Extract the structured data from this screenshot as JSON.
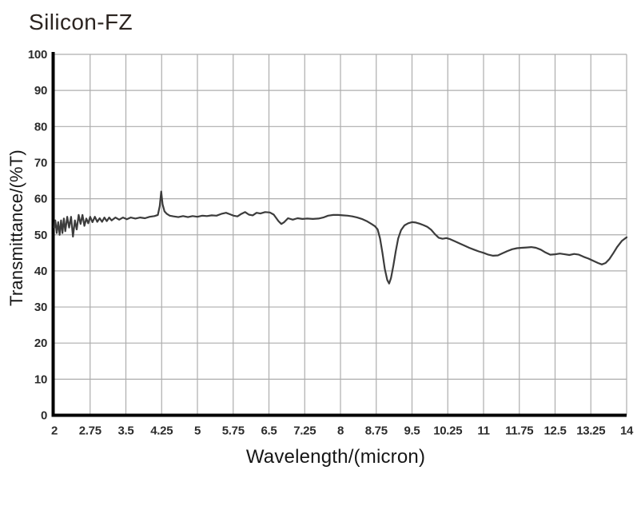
{
  "page": {
    "background": "#ffffff"
  },
  "chart_data": {
    "type": "line",
    "title": "Silicon-FZ",
    "xlabel": "Wavelength/(micron)",
    "ylabel": "Transmittance/(%T)",
    "xlim": [
      2,
      14
    ],
    "ylim": [
      0,
      100
    ],
    "grid": true,
    "legend": false,
    "x_ticks": [
      2,
      2.75,
      3.5,
      4.25,
      5,
      5.75,
      6.5,
      7.25,
      8,
      8.75,
      9.5,
      10.25,
      11,
      11.75,
      12.5,
      13.25,
      14
    ],
    "x_tick_labels": [
      "2",
      "2.75",
      "3.5",
      "4.25",
      "5",
      "5.75",
      "6.5",
      "7.25",
      "8",
      "8.75",
      "9.5",
      "10.25",
      "11",
      "11.75",
      "12.5",
      "13.25",
      "14"
    ],
    "y_ticks": [
      0,
      10,
      20,
      30,
      40,
      50,
      60,
      70,
      80,
      90,
      100
    ],
    "y_tick_labels": [
      "0",
      "10",
      "20",
      "30",
      "40",
      "50",
      "60",
      "70",
      "80",
      "90",
      "100"
    ],
    "colors": {
      "grid": "#adadad",
      "axis": "#000000",
      "line": "#3c3c3c",
      "tick_text": "#2c2c2c"
    },
    "series": [
      {
        "name": "transmittance",
        "color": "#3c3c3c",
        "points": [
          [
            2.0,
            52.0
          ],
          [
            2.02,
            54.0
          ],
          [
            2.05,
            50.5
          ],
          [
            2.08,
            53.5
          ],
          [
            2.11,
            50.0
          ],
          [
            2.14,
            54.0
          ],
          [
            2.17,
            50.5
          ],
          [
            2.2,
            54.5
          ],
          [
            2.23,
            51.0
          ],
          [
            2.27,
            55.0
          ],
          [
            2.31,
            52.0
          ],
          [
            2.35,
            55.0
          ],
          [
            2.39,
            49.5
          ],
          [
            2.43,
            54.0
          ],
          [
            2.47,
            51.5
          ],
          [
            2.51,
            55.5
          ],
          [
            2.55,
            53.0
          ],
          [
            2.59,
            55.5
          ],
          [
            2.63,
            52.5
          ],
          [
            2.67,
            54.5
          ],
          [
            2.71,
            53.2
          ],
          [
            2.75,
            55.0
          ],
          [
            2.8,
            53.5
          ],
          [
            2.85,
            55.0
          ],
          [
            2.9,
            53.6
          ],
          [
            2.95,
            54.6
          ],
          [
            3.0,
            53.6
          ],
          [
            3.05,
            54.8
          ],
          [
            3.1,
            53.8
          ],
          [
            3.15,
            54.8
          ],
          [
            3.2,
            54.0
          ],
          [
            3.28,
            54.8
          ],
          [
            3.36,
            54.2
          ],
          [
            3.44,
            54.8
          ],
          [
            3.52,
            54.3
          ],
          [
            3.6,
            54.8
          ],
          [
            3.7,
            54.5
          ],
          [
            3.8,
            54.8
          ],
          [
            3.9,
            54.6
          ],
          [
            4.0,
            55.0
          ],
          [
            4.1,
            55.2
          ],
          [
            4.17,
            55.5
          ],
          [
            4.21,
            58.0
          ],
          [
            4.24,
            62.0
          ],
          [
            4.27,
            58.5
          ],
          [
            4.31,
            56.5
          ],
          [
            4.36,
            55.8
          ],
          [
            4.42,
            55.3
          ],
          [
            4.5,
            55.1
          ],
          [
            4.6,
            54.9
          ],
          [
            4.7,
            55.2
          ],
          [
            4.8,
            54.9
          ],
          [
            4.9,
            55.2
          ],
          [
            5.0,
            55.0
          ],
          [
            5.1,
            55.3
          ],
          [
            5.2,
            55.2
          ],
          [
            5.3,
            55.4
          ],
          [
            5.4,
            55.3
          ],
          [
            5.5,
            55.8
          ],
          [
            5.6,
            56.1
          ],
          [
            5.68,
            55.7
          ],
          [
            5.76,
            55.3
          ],
          [
            5.84,
            55.1
          ],
          [
            5.92,
            55.8
          ],
          [
            6.0,
            56.3
          ],
          [
            6.08,
            55.6
          ],
          [
            6.16,
            55.4
          ],
          [
            6.24,
            56.1
          ],
          [
            6.32,
            55.9
          ],
          [
            6.42,
            56.3
          ],
          [
            6.52,
            56.2
          ],
          [
            6.6,
            55.6
          ],
          [
            6.7,
            53.8
          ],
          [
            6.76,
            53.0
          ],
          [
            6.82,
            53.5
          ],
          [
            6.9,
            54.6
          ],
          [
            7.0,
            54.2
          ],
          [
            7.1,
            54.6
          ],
          [
            7.2,
            54.4
          ],
          [
            7.3,
            54.5
          ],
          [
            7.42,
            54.4
          ],
          [
            7.54,
            54.5
          ],
          [
            7.64,
            54.8
          ],
          [
            7.74,
            55.3
          ],
          [
            7.85,
            55.5
          ],
          [
            7.95,
            55.5
          ],
          [
            8.05,
            55.4
          ],
          [
            8.15,
            55.3
          ],
          [
            8.25,
            55.1
          ],
          [
            8.35,
            54.8
          ],
          [
            8.45,
            54.4
          ],
          [
            8.55,
            53.8
          ],
          [
            8.65,
            53.0
          ],
          [
            8.72,
            52.4
          ],
          [
            8.78,
            51.5
          ],
          [
            8.83,
            49.0
          ],
          [
            8.88,
            45.0
          ],
          [
            8.93,
            40.5
          ],
          [
            8.98,
            37.5
          ],
          [
            9.02,
            36.5
          ],
          [
            9.06,
            38.0
          ],
          [
            9.11,
            41.5
          ],
          [
            9.16,
            45.5
          ],
          [
            9.21,
            49.0
          ],
          [
            9.27,
            51.3
          ],
          [
            9.34,
            52.6
          ],
          [
            9.42,
            53.2
          ],
          [
            9.5,
            53.5
          ],
          [
            9.58,
            53.4
          ],
          [
            9.66,
            53.1
          ],
          [
            9.74,
            52.7
          ],
          [
            9.82,
            52.2
          ],
          [
            9.9,
            51.4
          ],
          [
            9.98,
            50.2
          ],
          [
            10.06,
            49.2
          ],
          [
            10.14,
            48.9
          ],
          [
            10.22,
            49.1
          ],
          [
            10.3,
            48.8
          ],
          [
            10.4,
            48.2
          ],
          [
            10.5,
            47.6
          ],
          [
            10.6,
            47.0
          ],
          [
            10.7,
            46.4
          ],
          [
            10.8,
            45.9
          ],
          [
            10.9,
            45.4
          ],
          [
            11.0,
            45.0
          ],
          [
            11.1,
            44.5
          ],
          [
            11.2,
            44.2
          ],
          [
            11.3,
            44.3
          ],
          [
            11.4,
            44.9
          ],
          [
            11.5,
            45.5
          ],
          [
            11.6,
            46.0
          ],
          [
            11.7,
            46.3
          ],
          [
            11.8,
            46.4
          ],
          [
            11.9,
            46.5
          ],
          [
            12.0,
            46.6
          ],
          [
            12.1,
            46.4
          ],
          [
            12.2,
            45.9
          ],
          [
            12.3,
            45.1
          ],
          [
            12.4,
            44.5
          ],
          [
            12.5,
            44.6
          ],
          [
            12.6,
            44.8
          ],
          [
            12.7,
            44.6
          ],
          [
            12.8,
            44.4
          ],
          [
            12.9,
            44.7
          ],
          [
            13.0,
            44.5
          ],
          [
            13.1,
            43.9
          ],
          [
            13.2,
            43.4
          ],
          [
            13.3,
            42.8
          ],
          [
            13.4,
            42.2
          ],
          [
            13.48,
            41.8
          ],
          [
            13.56,
            42.2
          ],
          [
            13.64,
            43.3
          ],
          [
            13.72,
            44.9
          ],
          [
            13.8,
            46.6
          ],
          [
            13.9,
            48.3
          ],
          [
            14.0,
            49.3
          ]
        ]
      }
    ]
  }
}
